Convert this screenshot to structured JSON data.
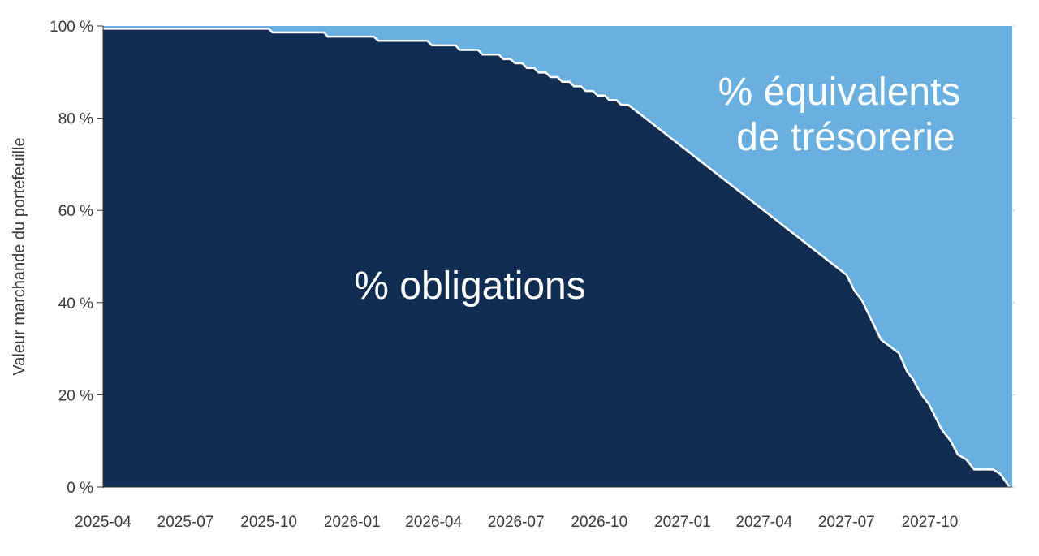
{
  "chart_data": {
    "type": "area",
    "ylabel": "Valeur marchande du portefeuille",
    "ylim": [
      0,
      100
    ],
    "y_ticks": [
      "0 %",
      "20 %",
      "40 %",
      "60 %",
      "80 %",
      "100 %"
    ],
    "y_tick_values": [
      0,
      20,
      40,
      60,
      80,
      100
    ],
    "x_ticks": [
      "2025-04",
      "2025-07",
      "2025-10",
      "2026-01",
      "2026-04",
      "2026-07",
      "2026-10",
      "2027-01",
      "2027-04",
      "2027-07",
      "2027-10"
    ],
    "x_range": [
      "2025-04-01",
      "2027-12-31"
    ],
    "stacked": true,
    "grid": false,
    "series": [
      {
        "name": "% obligations",
        "color": "#112d52",
        "points": [
          [
            "2025-04-01",
            99.4
          ],
          [
            "2025-10-01",
            99.4
          ],
          [
            "2025-10-05",
            98.6
          ],
          [
            "2025-12-01",
            98.6
          ],
          [
            "2025-12-05",
            97.7
          ],
          [
            "2026-01-25",
            97.7
          ],
          [
            "2026-01-30",
            96.8
          ],
          [
            "2026-03-25",
            96.8
          ],
          [
            "2026-03-30",
            95.8
          ],
          [
            "2026-04-25",
            95.8
          ],
          [
            "2026-04-30",
            94.8
          ],
          [
            "2026-05-20",
            94.8
          ],
          [
            "2026-05-25",
            93.8
          ],
          [
            "2026-06-12",
            93.8
          ],
          [
            "2026-06-17",
            92.8
          ],
          [
            "2026-06-25",
            92.8
          ],
          [
            "2026-06-30",
            91.9
          ],
          [
            "2026-07-08",
            91.9
          ],
          [
            "2026-07-13",
            90.9
          ],
          [
            "2026-07-21",
            90.9
          ],
          [
            "2026-07-26",
            89.9
          ],
          [
            "2026-08-03",
            89.9
          ],
          [
            "2026-08-08",
            88.9
          ],
          [
            "2026-08-16",
            88.9
          ],
          [
            "2026-08-21",
            87.9
          ],
          [
            "2026-08-29",
            87.9
          ],
          [
            "2026-09-03",
            86.9
          ],
          [
            "2026-09-11",
            86.9
          ],
          [
            "2026-09-16",
            85.9
          ],
          [
            "2026-09-24",
            85.9
          ],
          [
            "2026-09-29",
            84.9
          ],
          [
            "2026-10-07",
            84.9
          ],
          [
            "2026-10-12",
            83.9
          ],
          [
            "2026-10-20",
            83.9
          ],
          [
            "2026-10-25",
            82.9
          ],
          [
            "2026-11-02",
            82.9
          ],
          [
            "2027-07-01",
            46.0
          ],
          [
            "2027-07-10",
            42.5
          ],
          [
            "2027-07-18",
            40.5
          ],
          [
            "2027-08-08",
            32.0
          ],
          [
            "2027-08-28",
            29.0
          ],
          [
            "2027-09-06",
            25.0
          ],
          [
            "2027-09-12",
            23.5
          ],
          [
            "2027-09-22",
            20.0
          ],
          [
            "2027-09-30",
            18.0
          ],
          [
            "2027-10-14",
            12.5
          ],
          [
            "2027-10-24",
            10.0
          ],
          [
            "2027-11-01",
            7.0
          ],
          [
            "2027-11-10",
            6.0
          ],
          [
            "2027-11-19",
            3.8
          ],
          [
            "2027-12-10",
            3.8
          ],
          [
            "2027-12-18",
            2.8
          ],
          [
            "2027-12-28",
            0.0
          ]
        ]
      },
      {
        "name": "% équivalents de trésorerie",
        "color": "#69b0e0",
        "fill_to": 100
      }
    ],
    "annotations": [
      {
        "text": "% obligations",
        "color": "#ffffff"
      },
      {
        "text": "% équivalents",
        "color": "#ffffff"
      },
      {
        "text": "de trésorerie",
        "color": "#ffffff"
      }
    ],
    "boundary_color": "#ffffff"
  }
}
